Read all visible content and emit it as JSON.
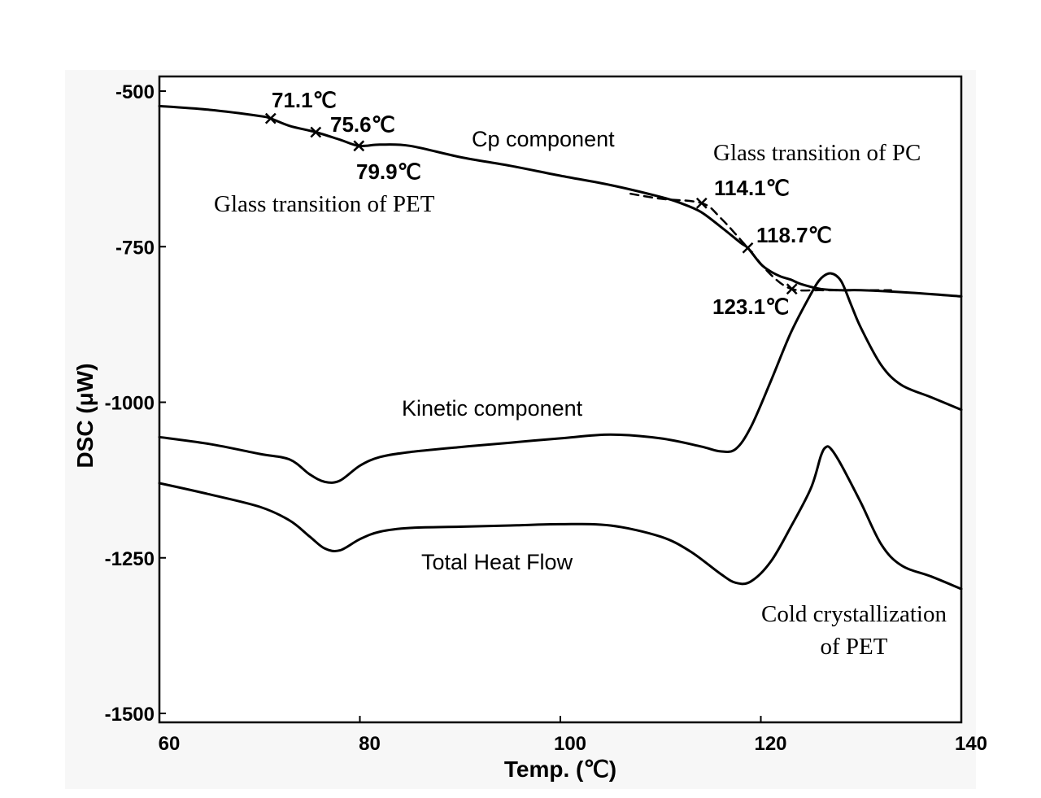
{
  "chart_data": {
    "type": "line",
    "xlabel": "Temp. (℃)",
    "ylabel": "DSC (μW)",
    "xlim": [
      60,
      140
    ],
    "ylim": [
      -1500,
      -500
    ],
    "xticks": [
      "60",
      "80",
      "100",
      "120",
      "140"
    ],
    "yticks": [
      "-500",
      "-750",
      "-1000",
      "-1250",
      "-1500"
    ],
    "grid": false,
    "series": [
      {
        "id": "cp",
        "x": [
          60,
          65,
          70,
          71.1,
          73,
          75.6,
          78,
          79.9,
          82,
          85,
          90,
          95,
          100,
          105,
          110,
          112,
          114,
          116,
          118,
          118.7,
          120,
          121,
          122,
          123,
          124,
          126,
          128,
          130,
          135,
          140
        ],
        "y": [
          -524,
          -530,
          -540,
          -544,
          -556,
          -566,
          -578,
          -588,
          -586,
          -588,
          -606,
          -620,
          -636,
          -651,
          -670,
          -680,
          -694,
          -718,
          -744,
          -752,
          -778,
          -790,
          -798,
          -803,
          -810,
          -818,
          -820,
          -820,
          -824,
          -830
        ]
      },
      {
        "id": "cp-extrapolation",
        "x": [
          107,
          110,
          114.1,
          116,
          118.7,
          121,
          123.1,
          126,
          130,
          133
        ],
        "y": [
          -665,
          -673,
          -680,
          -704,
          -752,
          -795,
          -818,
          -820,
          -820,
          -820
        ]
      },
      {
        "id": "kinetic",
        "x": [
          60,
          65,
          70,
          73,
          75,
          76.5,
          78,
          80,
          82,
          85,
          90,
          95,
          100,
          105,
          110,
          114,
          116,
          117.5,
          119,
          121,
          123,
          125,
          126,
          127,
          128,
          129,
          130,
          132,
          134,
          137,
          140
        ],
        "y": [
          -1056,
          -1067,
          -1083,
          -1092,
          -1116,
          -1128,
          -1126,
          -1102,
          -1088,
          -1080,
          -1072,
          -1065,
          -1058,
          -1052,
          -1058,
          -1071,
          -1079,
          -1075,
          -1040,
          -966,
          -888,
          -826,
          -801,
          -793,
          -805,
          -843,
          -881,
          -940,
          -972,
          -992,
          -1012
        ]
      },
      {
        "id": "total",
        "x": [
          60,
          65,
          70,
          73,
          75,
          76.5,
          78,
          80,
          82,
          85,
          90,
          95,
          100,
          105,
          110,
          113,
          116,
          117.5,
          119,
          121,
          123,
          125,
          126,
          126.5,
          127,
          128,
          130,
          132,
          134,
          137,
          140
        ],
        "y": [
          -1130,
          -1148,
          -1168,
          -1190,
          -1216,
          -1235,
          -1238,
          -1220,
          -1208,
          -1202,
          -1200,
          -1198,
          -1196,
          -1198,
          -1216,
          -1240,
          -1276,
          -1290,
          -1288,
          -1256,
          -1200,
          -1138,
          -1086,
          -1072,
          -1075,
          -1100,
          -1162,
          -1228,
          -1262,
          -1280,
          -1300
        ]
      }
    ],
    "transition_points": [
      {
        "x": 71.1,
        "y": -544,
        "label": "71.1℃"
      },
      {
        "x": 75.6,
        "y": -566,
        "label": "75.6℃"
      },
      {
        "x": 79.9,
        "y": -588,
        "label": "79.9℃"
      },
      {
        "x": 114.1,
        "y": -680,
        "label": "114.1℃"
      },
      {
        "x": 118.7,
        "y": -752,
        "label": "118.7℃"
      },
      {
        "x": 123.1,
        "y": -818,
        "label": "123.1℃"
      }
    ],
    "annotations": {
      "cp": "Cp component",
      "kinetic": "Kinetic component",
      "total": "Total Heat Flow",
      "pet_glass": "Glass transition of PET",
      "pc_glass": "Glass transition of PC",
      "cold_1": "Cold crystallization",
      "cold_2": "of PET"
    }
  }
}
